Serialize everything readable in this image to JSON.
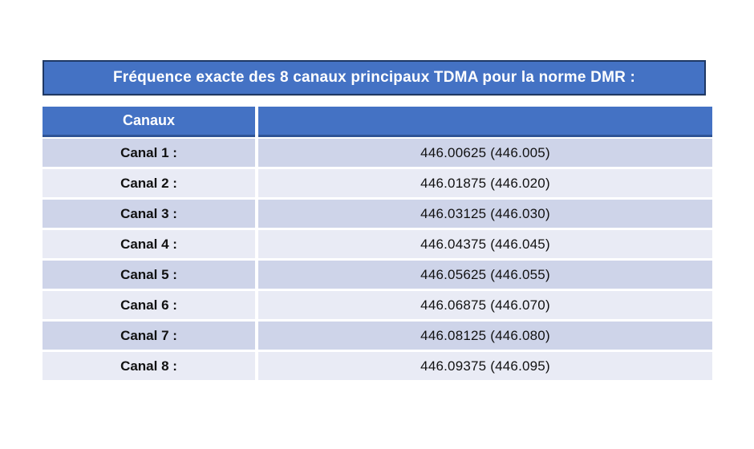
{
  "title": "Fréquence exacte des 8 canaux principaux TDMA pour la norme DMR :",
  "table": {
    "header": {
      "channels_column": "Canaux",
      "frequency_column": ""
    },
    "rows": [
      {
        "label": "Canal 1 :",
        "value": "446.00625 (446.005)"
      },
      {
        "label": "Canal 2 :",
        "value": "446.01875 (446.020)"
      },
      {
        "label": "Canal 3 :",
        "value": "446.03125 (446.030)"
      },
      {
        "label": "Canal 4 :",
        "value": "446.04375 (446.045)"
      },
      {
        "label": "Canal 5 :",
        "value": "446.05625 (446.055)"
      },
      {
        "label": "Canal 6 :",
        "value": "446.06875 (446.070)"
      },
      {
        "label": "Canal 7 :",
        "value": "446.08125 (446.080)"
      },
      {
        "label": "Canal 8 :",
        "value": "446.09375 (446.095)"
      }
    ]
  },
  "colors": {
    "banner_fill": "#4472C4",
    "banner_border": "#1F3864",
    "header_fill": "#4472C4",
    "header_underline": "#2F5496",
    "row_odd": "#CED4E9",
    "row_even": "#E9EBF5",
    "text_dark": "#111111",
    "text_light": "#FFFFFF",
    "page_bg": "#FFFFFF"
  }
}
